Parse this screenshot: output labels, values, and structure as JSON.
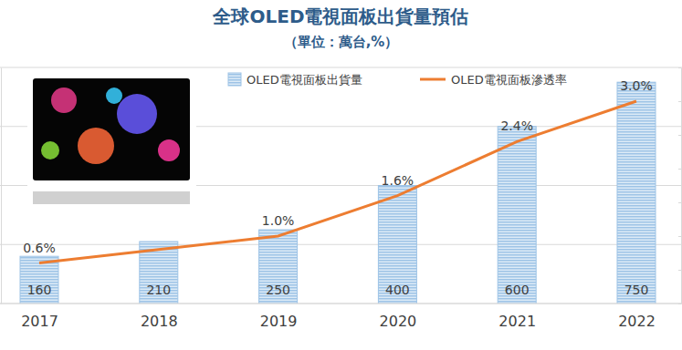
{
  "chart_data": {
    "type": "bar",
    "title": "全球OLED電視面板出貨量預估",
    "subtitle": "（單位：萬台,%）",
    "categories": [
      "2017",
      "2018",
      "2019",
      "2020",
      "2021",
      "2022"
    ],
    "series": [
      {
        "name": "OLED電視面板出貨量",
        "type": "bar",
        "color": "#9dc3e6",
        "values": [
          160,
          210,
          250,
          400,
          600,
          750
        ],
        "data_labels": true
      },
      {
        "name": "OLED電視面板滲透率",
        "type": "line",
        "color": "#ed7d31",
        "axis": "y2",
        "values": [
          0.6,
          0.8,
          1.0,
          1.6,
          2.4,
          3.0
        ],
        "data_labels": true,
        "value_labels": [
          "0.6%",
          null,
          "1.0%",
          "1.6%",
          "2.4%",
          "3.0%"
        ]
      }
    ],
    "ylim": [
      0,
      800
    ],
    "yticks": [
      0,
      200,
      400,
      600,
      800
    ],
    "y2lim": [
      0,
      3.5
    ],
    "y2ticks": [
      0,
      0.5,
      1,
      1.5,
      2,
      2.5,
      3,
      3.5
    ],
    "grid": true,
    "legend": "top",
    "tick_labels": false
  }
}
